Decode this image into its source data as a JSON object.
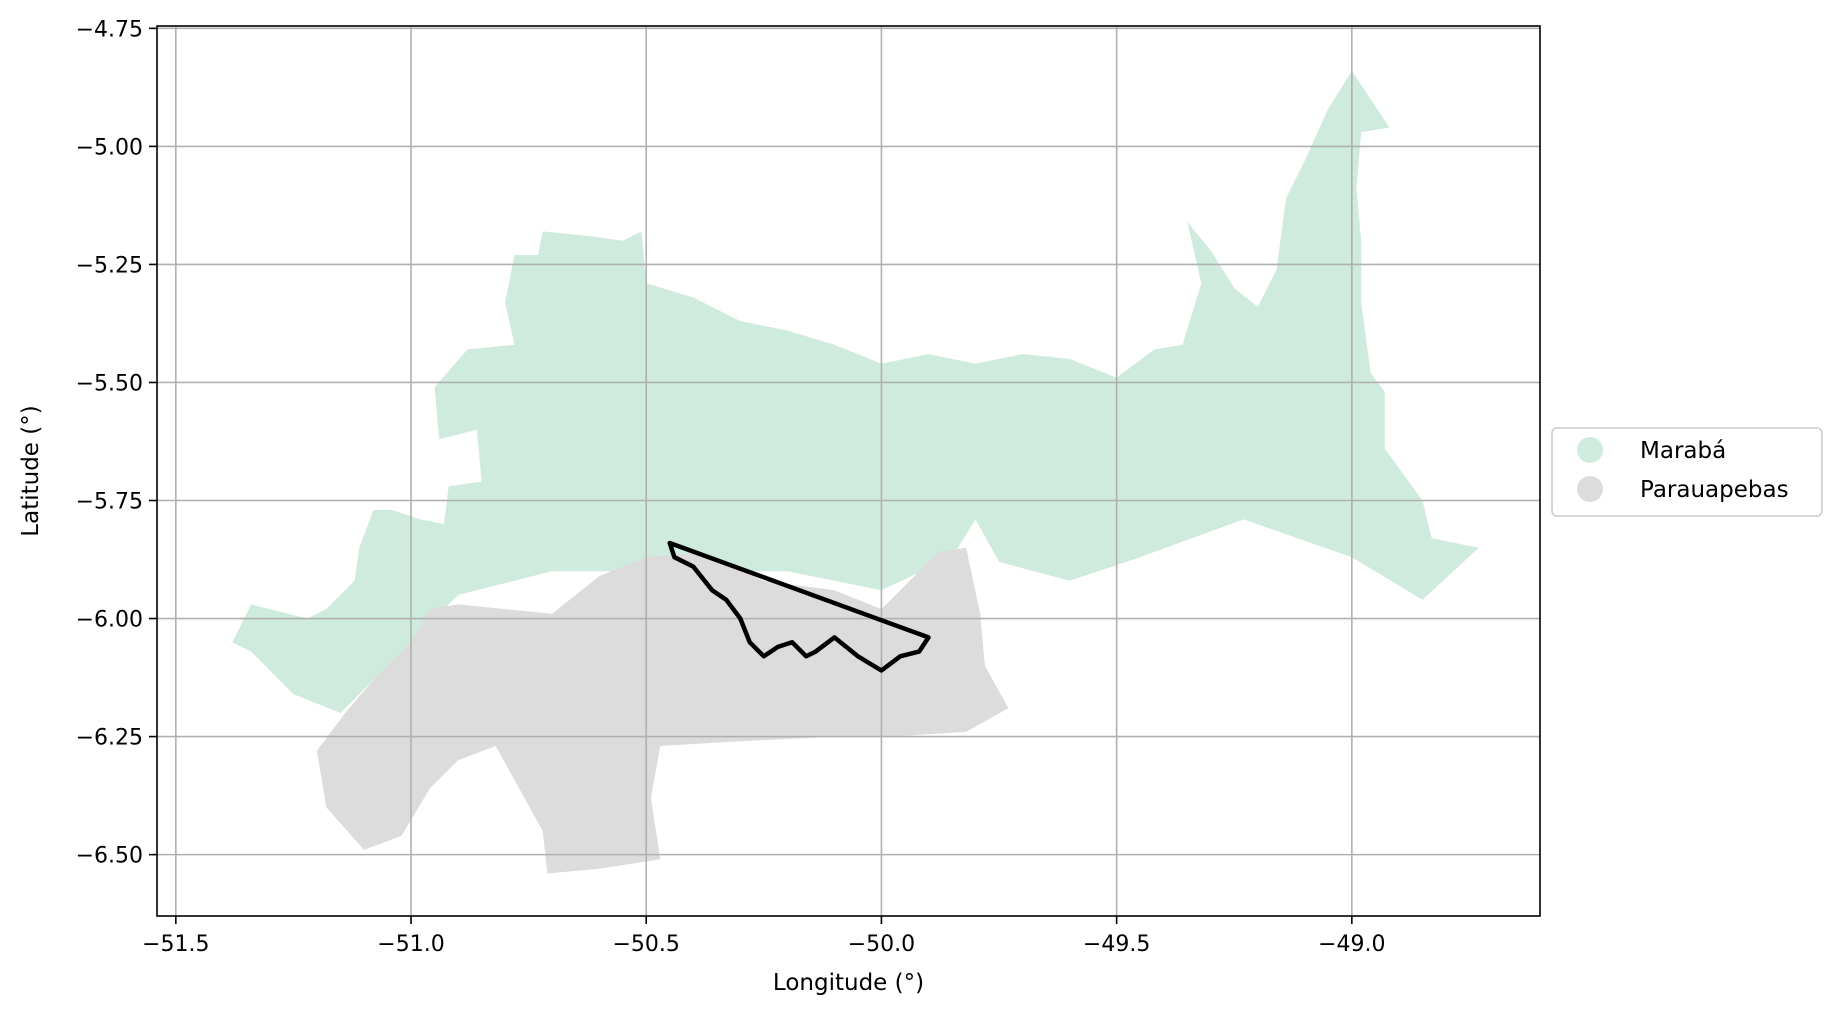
{
  "chart_data": {
    "type": "map",
    "xlabel": "Longitude (°)",
    "ylabel": "Latitude (°)",
    "xlim": [
      -51.54,
      -48.6
    ],
    "ylim": [
      -6.63,
      -4.745
    ],
    "grid": true,
    "x_ticks": [
      {
        "value": -51.5,
        "label": "−51.5"
      },
      {
        "value": -51.0,
        "label": "−51.0"
      },
      {
        "value": -50.5,
        "label": "−50.5"
      },
      {
        "value": -50.0,
        "label": "−50.0"
      },
      {
        "value": -49.5,
        "label": "−49.5"
      },
      {
        "value": -49.0,
        "label": "−49.0"
      }
    ],
    "y_ticks": [
      {
        "value": -4.75,
        "label": "−4.75"
      },
      {
        "value": -5.0,
        "label": "−5.00"
      },
      {
        "value": -5.25,
        "label": "−5.25"
      },
      {
        "value": -5.5,
        "label": "−5.50"
      },
      {
        "value": -5.75,
        "label": "−5.75"
      },
      {
        "value": -6.0,
        "label": "−6.00"
      },
      {
        "value": -6.25,
        "label": "−6.25"
      },
      {
        "value": -6.5,
        "label": "−6.50"
      }
    ],
    "legend": {
      "placement": "right",
      "entries": [
        {
          "label": "Marabá",
          "color": "#cfebde"
        },
        {
          "label": "Parauapebas",
          "color": "#dcdcdc"
        }
      ]
    },
    "regions": [
      {
        "name": "Marabá",
        "color": "#cfebde",
        "coords": [
          [
            -51.38,
            -6.05
          ],
          [
            -51.34,
            -5.97
          ],
          [
            -51.3,
            -5.98
          ],
          [
            -51.22,
            -6.0
          ],
          [
            -51.18,
            -5.98
          ],
          [
            -51.12,
            -5.92
          ],
          [
            -51.11,
            -5.85
          ],
          [
            -51.08,
            -5.77
          ],
          [
            -51.04,
            -5.77
          ],
          [
            -50.98,
            -5.79
          ],
          [
            -50.93,
            -5.8
          ],
          [
            -50.92,
            -5.72
          ],
          [
            -50.85,
            -5.71
          ],
          [
            -50.86,
            -5.6
          ],
          [
            -50.94,
            -5.62
          ],
          [
            -50.95,
            -5.51
          ],
          [
            -50.88,
            -5.43
          ],
          [
            -50.78,
            -5.42
          ],
          [
            -50.8,
            -5.33
          ],
          [
            -50.78,
            -5.23
          ],
          [
            -50.73,
            -5.23
          ],
          [
            -50.72,
            -5.18
          ],
          [
            -50.62,
            -5.19
          ],
          [
            -50.55,
            -5.2
          ],
          [
            -50.51,
            -5.18
          ],
          [
            -50.5,
            -5.29
          ],
          [
            -50.4,
            -5.32
          ],
          [
            -50.3,
            -5.37
          ],
          [
            -50.2,
            -5.39
          ],
          [
            -50.1,
            -5.42
          ],
          [
            -50.0,
            -5.46
          ],
          [
            -49.9,
            -5.44
          ],
          [
            -49.8,
            -5.46
          ],
          [
            -49.7,
            -5.44
          ],
          [
            -49.6,
            -5.45
          ],
          [
            -49.5,
            -5.49
          ],
          [
            -49.42,
            -5.43
          ],
          [
            -49.36,
            -5.42
          ],
          [
            -49.32,
            -5.29
          ],
          [
            -49.35,
            -5.16
          ],
          [
            -49.3,
            -5.22
          ],
          [
            -49.25,
            -5.3
          ],
          [
            -49.2,
            -5.34
          ],
          [
            -49.16,
            -5.26
          ],
          [
            -49.14,
            -5.11
          ],
          [
            -49.1,
            -5.03
          ],
          [
            -49.05,
            -4.92
          ],
          [
            -49.0,
            -4.84
          ],
          [
            -48.92,
            -4.96
          ],
          [
            -48.98,
            -4.97
          ],
          [
            -48.99,
            -5.09
          ],
          [
            -48.98,
            -5.2
          ],
          [
            -48.98,
            -5.33
          ],
          [
            -48.96,
            -5.48
          ],
          [
            -48.93,
            -5.52
          ],
          [
            -48.93,
            -5.64
          ],
          [
            -48.85,
            -5.75
          ],
          [
            -48.83,
            -5.83
          ],
          [
            -48.73,
            -5.85
          ],
          [
            -48.85,
            -5.96
          ],
          [
            -49.0,
            -5.87
          ],
          [
            -49.23,
            -5.79
          ],
          [
            -49.45,
            -5.87
          ],
          [
            -49.6,
            -5.92
          ],
          [
            -49.75,
            -5.88
          ],
          [
            -49.8,
            -5.79
          ],
          [
            -49.85,
            -5.87
          ],
          [
            -50.0,
            -5.94
          ],
          [
            -50.2,
            -5.9
          ],
          [
            -50.4,
            -5.9
          ],
          [
            -50.7,
            -5.9
          ],
          [
            -50.9,
            -5.95
          ],
          [
            -51.08,
            -6.13
          ],
          [
            -51.15,
            -6.2
          ],
          [
            -51.25,
            -6.16
          ],
          [
            -51.34,
            -6.07
          ]
        ]
      },
      {
        "name": "Parauapebas",
        "color": "#dcdcdc",
        "coords": [
          [
            -51.0,
            -6.05
          ],
          [
            -50.96,
            -5.98
          ],
          [
            -50.9,
            -5.97
          ],
          [
            -50.7,
            -5.99
          ],
          [
            -50.6,
            -5.91
          ],
          [
            -50.5,
            -5.87
          ],
          [
            -50.38,
            -5.86
          ],
          [
            -50.25,
            -5.92
          ],
          [
            -50.1,
            -5.94
          ],
          [
            -50.0,
            -5.98
          ],
          [
            -49.93,
            -5.91
          ],
          [
            -49.88,
            -5.86
          ],
          [
            -49.82,
            -5.85
          ],
          [
            -49.79,
            -5.99
          ],
          [
            -49.78,
            -6.1
          ],
          [
            -49.73,
            -6.19
          ],
          [
            -49.82,
            -6.24
          ],
          [
            -49.98,
            -6.25
          ],
          [
            -50.1,
            -6.25
          ],
          [
            -50.3,
            -6.26
          ],
          [
            -50.47,
            -6.27
          ],
          [
            -50.49,
            -6.38
          ],
          [
            -50.47,
            -6.51
          ],
          [
            -50.6,
            -6.53
          ],
          [
            -50.71,
            -6.54
          ],
          [
            -50.72,
            -6.45
          ],
          [
            -50.82,
            -6.27
          ],
          [
            -50.9,
            -6.3
          ],
          [
            -50.96,
            -6.36
          ],
          [
            -51.02,
            -6.46
          ],
          [
            -51.1,
            -6.49
          ],
          [
            -51.18,
            -6.4
          ],
          [
            -51.2,
            -6.28
          ],
          [
            -51.14,
            -6.2
          ],
          [
            -51.08,
            -6.13
          ]
        ]
      }
    ],
    "outline": {
      "color": "#000000",
      "coords": [
        [
          -50.45,
          -5.84
        ],
        [
          -49.9,
          -6.04
        ],
        [
          -49.92,
          -6.07
        ],
        [
          -49.96,
          -6.08
        ],
        [
          -50.0,
          -6.11
        ],
        [
          -50.05,
          -6.08
        ],
        [
          -50.1,
          -6.04
        ],
        [
          -50.14,
          -6.07
        ],
        [
          -50.16,
          -6.08
        ],
        [
          -50.19,
          -6.05
        ],
        [
          -50.22,
          -6.06
        ],
        [
          -50.25,
          -6.08
        ],
        [
          -50.28,
          -6.05
        ],
        [
          -50.3,
          -6.0
        ],
        [
          -50.33,
          -5.96
        ],
        [
          -50.36,
          -5.94
        ],
        [
          -50.4,
          -5.89
        ],
        [
          -50.44,
          -5.87
        ],
        [
          -50.45,
          -5.84
        ]
      ]
    }
  }
}
